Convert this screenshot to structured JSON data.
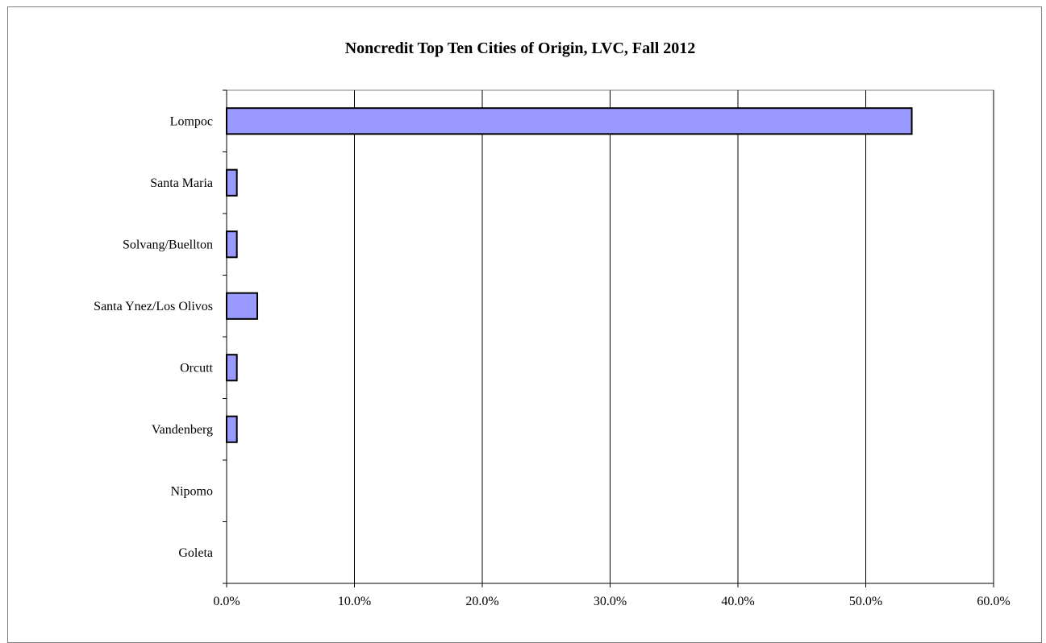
{
  "chart_data": {
    "type": "bar",
    "orientation": "horizontal",
    "title": "Noncredit Top Ten Cities of Origin, LVC, Fall 2012",
    "xlabel": "",
    "ylabel": "",
    "categories": [
      "Lompoc",
      "Santa Maria",
      "Solvang/Buellton",
      "Santa Ynez/Los Olivos",
      "Orcutt",
      "Vandenberg",
      "Nipomo",
      "Goleta"
    ],
    "values": [
      53.6,
      0.8,
      0.8,
      2.4,
      0.8,
      0.8,
      0,
      0
    ],
    "xlim": [
      0,
      60
    ],
    "x_ticks": [
      0,
      10,
      20,
      30,
      40,
      50,
      60
    ],
    "x_tick_labels": [
      "0.0%",
      "10.0%",
      "20.0%",
      "30.0%",
      "40.0%",
      "50.0%",
      "60.0%"
    ],
    "grid": "vertical",
    "legend": "none",
    "bar_color": "#9999ff",
    "bar_edge_color": "#000000",
    "grid_color": "#000000"
  }
}
